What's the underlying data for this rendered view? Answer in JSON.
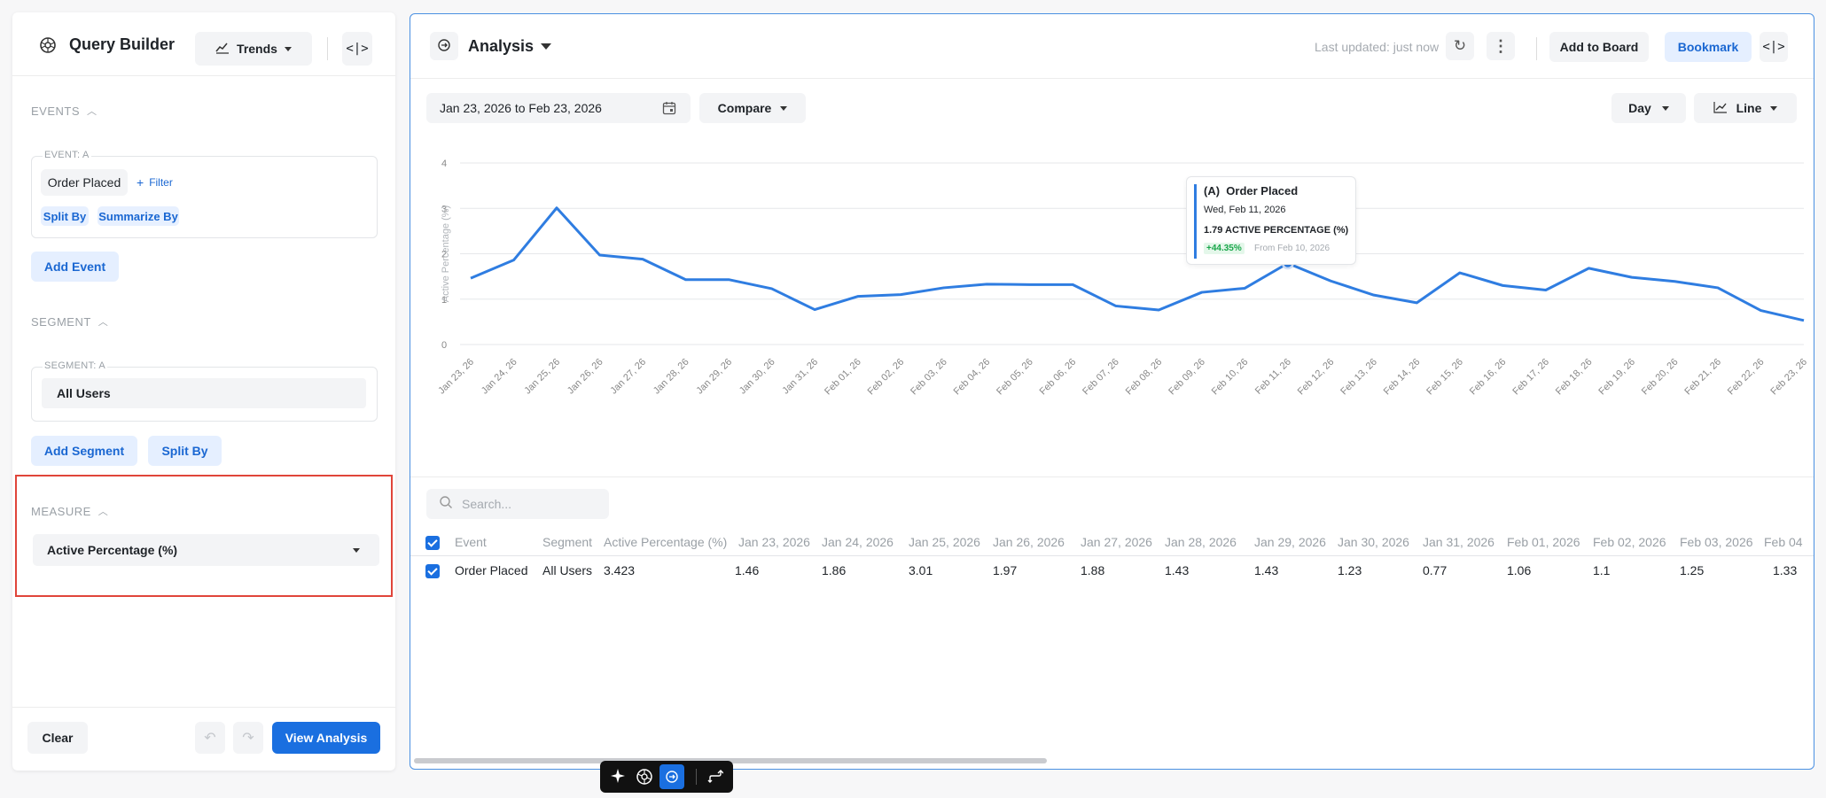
{
  "query_builder": {
    "title": "Query Builder",
    "view_selector": "Trends",
    "events_section": "EVENTS",
    "event_box_label": "EVENT: A",
    "event_name": "Order Placed",
    "filter_label": "Filter",
    "split_by": "Split By",
    "summarize_by": "Summarize By",
    "add_event": "Add Event",
    "segment_section": "SEGMENT",
    "segment_box_label": "SEGMENT: A",
    "segment_value": "All Users",
    "add_segment": "Add Segment",
    "segment_split_by": "Split By",
    "measure_section": "MEASURE",
    "measure_value": "Active Percentage (%)",
    "clear": "Clear",
    "view_analysis": "View Analysis"
  },
  "analysis": {
    "title": "Analysis",
    "last_updated": "Last updated: just now",
    "add_to_board": "Add to Board",
    "bookmark": "Bookmark",
    "date_range": "Jan 23, 2026 to Feb 23, 2026",
    "compare": "Compare",
    "interval": "Day",
    "chart_type": "Line",
    "search_placeholder": "Search..."
  },
  "tooltip": {
    "series": "(A)  Order Placed",
    "date": "Wed, Feb 11, 2026",
    "value_line": "1.79 ACTIVE PERCENTAGE (%)",
    "change": "+44.35%",
    "from": "From Feb 10, 2026"
  },
  "colors": {
    "accent": "#1a6fe0",
    "line": "#2f7de1",
    "highlight_border": "#e0453a",
    "positive": "#19a64a"
  },
  "chart_data": {
    "type": "line",
    "ylabel": "Active Percentage (%)",
    "ylim": [
      0,
      4
    ],
    "yticks": [
      0,
      1,
      2,
      3,
      4
    ],
    "grid": true,
    "categories": [
      "Jan 23, 26",
      "Jan 24, 26",
      "Jan 25, 26",
      "Jan 26, 26",
      "Jan 27, 26",
      "Jan 28, 26",
      "Jan 29, 26",
      "Jan 30, 26",
      "Jan 31, 26",
      "Feb 01, 26",
      "Feb 02, 26",
      "Feb 03, 26",
      "Feb 04, 26",
      "Feb 05, 26",
      "Feb 06, 26",
      "Feb 07, 26",
      "Feb 08, 26",
      "Feb 09, 26",
      "Feb 10, 26",
      "Feb 11, 26",
      "Feb 12, 26",
      "Feb 13, 26",
      "Feb 14, 26",
      "Feb 15, 26",
      "Feb 16, 26",
      "Feb 17, 26",
      "Feb 18, 26",
      "Feb 19, 26",
      "Feb 20, 26",
      "Feb 21, 26",
      "Feb 22, 26",
      "Feb 23, 26"
    ],
    "series": [
      {
        "name": "Order Placed",
        "values": [
          1.46,
          1.86,
          3.01,
          1.97,
          1.88,
          1.43,
          1.43,
          1.23,
          0.77,
          1.06,
          1.1,
          1.25,
          1.33,
          1.32,
          1.32,
          0.85,
          0.76,
          1.15,
          1.24,
          1.79,
          1.4,
          1.09,
          0.92,
          1.58,
          1.3,
          1.2,
          1.68,
          1.48,
          1.39,
          1.25,
          0.75,
          0.53
        ]
      }
    ],
    "highlight_index": 19
  },
  "table": {
    "headers": [
      "Event",
      "Segment",
      "Active Percentage (%)",
      "Jan 23, 2026",
      "Jan 24, 2026",
      "Jan 25, 2026",
      "Jan 26, 2026",
      "Jan 27, 2026",
      "Jan 28, 2026",
      "Jan 29, 2026",
      "Jan 30, 2026",
      "Jan 31, 2026",
      "Feb 01, 2026",
      "Feb 02, 2026",
      "Feb 03, 2026",
      "Feb 04"
    ],
    "row": [
      "Order Placed",
      "All Users",
      "3.423",
      "1.46",
      "1.86",
      "3.01",
      "1.97",
      "1.88",
      "1.43",
      "1.43",
      "1.23",
      "0.77",
      "1.06",
      "1.1",
      "1.25",
      "1.33"
    ]
  }
}
